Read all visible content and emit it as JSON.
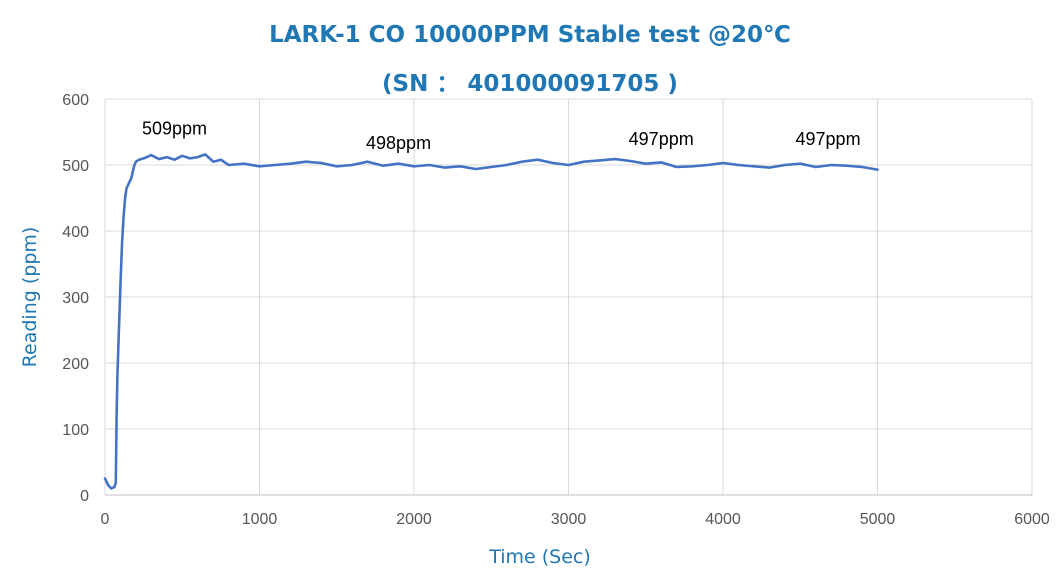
{
  "chart_data": {
    "type": "line",
    "title": "LARK-1 CO 10000PPM Stable test @20℃",
    "subtitle": "(SN ： 401000091705 )",
    "xlabel": "Time (Sec)",
    "ylabel": "Reading (ppm)",
    "xlim": [
      0,
      6000
    ],
    "ylim": [
      0,
      600
    ],
    "xticks": [
      0,
      1000,
      2000,
      3000,
      4000,
      5000,
      6000
    ],
    "yticks": [
      0,
      100,
      200,
      300,
      400,
      500,
      600
    ],
    "xtick_labels": [
      "0",
      "1000",
      "2000",
      "3000",
      "4000",
      "5000",
      "6000"
    ],
    "ytick_labels": [
      "0",
      "100",
      "200",
      "300",
      "400",
      "500",
      "600"
    ],
    "grid": true,
    "series": [
      {
        "color": "#4472c4",
        "x": [
          0,
          20,
          40,
          60,
          70,
          75,
          80,
          90,
          100,
          110,
          120,
          130,
          140,
          150,
          160,
          170,
          180,
          190,
          200,
          220,
          250,
          300,
          350,
          400,
          450,
          500,
          550,
          600,
          650,
          700,
          750,
          800,
          900,
          1000,
          1100,
          1200,
          1300,
          1400,
          1500,
          1600,
          1700,
          1800,
          1900,
          2000,
          2100,
          2200,
          2300,
          2400,
          2500,
          2600,
          2700,
          2800,
          2900,
          3000,
          3100,
          3200,
          3300,
          3400,
          3500,
          3600,
          3700,
          3800,
          3900,
          4000,
          4100,
          4200,
          4300,
          4400,
          4500,
          4600,
          4700,
          4800,
          4900,
          5000
        ],
        "y": [
          25,
          15,
          10,
          12,
          18,
          120,
          180,
          250,
          320,
          380,
          420,
          450,
          465,
          470,
          475,
          480,
          490,
          500,
          505,
          508,
          510,
          515,
          509,
          512,
          508,
          514,
          510,
          512,
          516,
          505,
          508,
          500,
          502,
          498,
          500,
          502,
          505,
          503,
          498,
          500,
          505,
          499,
          502,
          498,
          500,
          496,
          498,
          494,
          497,
          500,
          505,
          508,
          503,
          500,
          505,
          507,
          509,
          506,
          502,
          504,
          497,
          498,
          500,
          503,
          500,
          498,
          496,
          500,
          502,
          497,
          500,
          499,
          497,
          493
        ]
      }
    ],
    "annotations": [
      {
        "text": "509ppm",
        "x": 450,
        "y": 546
      },
      {
        "text": "498ppm",
        "x": 1900,
        "y": 524
      },
      {
        "text": "497ppm",
        "x": 3600,
        "y": 530
      },
      {
        "text": "497ppm",
        "x": 4680,
        "y": 530
      }
    ]
  }
}
